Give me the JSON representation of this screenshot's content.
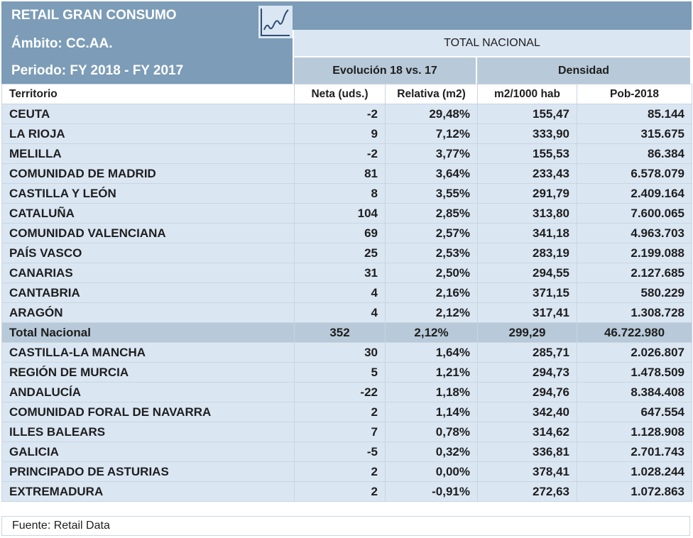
{
  "header": {
    "title": "RETAIL GRAN CONSUMO",
    "scope": "Ámbito: CC.AA.",
    "period": "Periodo: FY 2018 - FY 2017",
    "logo_icon": "trend-chart-icon",
    "band": "TOTAL NACIONAL",
    "group_evolution": "Evolución 18 vs. 17",
    "group_density": "Densidad"
  },
  "colors": {
    "header_bg": "#7c9cb7",
    "group_bg": "#b8cad9",
    "row_bg": "#dbe6f3",
    "total_bg": "#b8cad9"
  },
  "chart_data": {
    "type": "table",
    "columns": [
      "Territorio",
      "Neta (uds.)",
      "Relativa (m2)",
      "m2/1000 hab",
      "Pob-2018"
    ],
    "rows": [
      [
        "CEUTA",
        "-2",
        "29,48%",
        "155,47",
        "85.144"
      ],
      [
        "LA RIOJA",
        "9",
        "7,12%",
        "333,90",
        "315.675"
      ],
      [
        "MELILLA",
        "-2",
        "3,77%",
        "155,53",
        "86.384"
      ],
      [
        "COMUNIDAD DE MADRID",
        "81",
        "3,64%",
        "233,43",
        "6.578.079"
      ],
      [
        "CASTILLA Y LEÓN",
        "8",
        "3,55%",
        "291,79",
        "2.409.164"
      ],
      [
        "CATALUÑA",
        "104",
        "2,85%",
        "313,80",
        "7.600.065"
      ],
      [
        "COMUNIDAD VALENCIANA",
        "69",
        "2,57%",
        "341,18",
        "4.963.703"
      ],
      [
        "PAÍS VASCO",
        "25",
        "2,53%",
        "283,19",
        "2.199.088"
      ],
      [
        "CANARIAS",
        "31",
        "2,50%",
        "294,55",
        "2.127.685"
      ],
      [
        "CANTABRIA",
        "4",
        "2,16%",
        "371,15",
        "580.229"
      ],
      [
        "ARAGÓN",
        "4",
        "2,12%",
        "317,41",
        "1.308.728"
      ],
      [
        "Total Nacional",
        "352",
        "2,12%",
        "299,29",
        "46.722.980"
      ],
      [
        "CASTILLA-LA MANCHA",
        "30",
        "1,64%",
        "285,71",
        "2.026.807"
      ],
      [
        "REGIÓN DE MURCIA",
        "5",
        "1,21%",
        "294,73",
        "1.478.509"
      ],
      [
        "ANDALUCÍA",
        "-22",
        "1,18%",
        "294,76",
        "8.384.408"
      ],
      [
        "COMUNIDAD FORAL DE NAVARRA",
        "2",
        "1,14%",
        "342,40",
        "647.554"
      ],
      [
        "ILLES BALEARS",
        "7",
        "0,78%",
        "314,62",
        "1.128.908"
      ],
      [
        "GALICIA",
        "-5",
        "0,32%",
        "336,81",
        "2.701.743"
      ],
      [
        "PRINCIPADO DE ASTURIAS",
        "2",
        "0,00%",
        "378,41",
        "1.028.244"
      ],
      [
        "EXTREMADURA",
        "2",
        "-0,91%",
        "272,63",
        "1.072.863"
      ]
    ],
    "highlight_row": "Total Nacional"
  },
  "footer": {
    "source": "Fuente: Retail Data"
  }
}
